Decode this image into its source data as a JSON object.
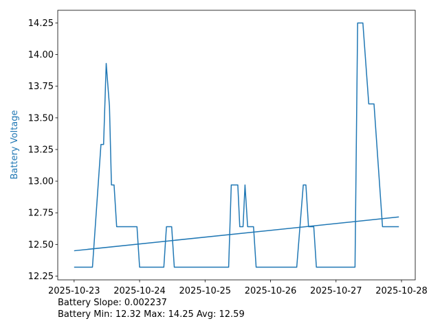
{
  "chart_data": {
    "type": "line",
    "ylabel": "Battery Voltage",
    "ylabel_color": "#1f77b4",
    "annotations": [
      "Battery Slope: 0.002237",
      "Battery Min: 12.32 Max: 14.25 Avg: 12.59"
    ],
    "xlim": [
      -0.25,
      5.21
    ],
    "xticks": [
      {
        "value": 0,
        "label": "2025-10-23"
      },
      {
        "value": 1,
        "label": "2025-10-24"
      },
      {
        "value": 2,
        "label": "2025-10-25"
      },
      {
        "value": 3,
        "label": "2025-10-26"
      },
      {
        "value": 4,
        "label": "2025-10-27"
      },
      {
        "value": 5,
        "label": "2025-10-28"
      }
    ],
    "ylim": [
      12.22,
      14.35
    ],
    "yticks": [
      12.25,
      {
        "value": 12.5,
        "label": "12.50"
      },
      12.75,
      {
        "value": 13.0,
        "label": "13.00"
      },
      13.25,
      {
        "value": 13.5,
        "label": "13.50"
      },
      13.75,
      {
        "value": 14.0,
        "label": "14.00"
      },
      14.25
    ],
    "series": [
      {
        "color": "#1f77b4",
        "x": [
          0,
          0.28,
          0.41,
          0.45,
          0.49,
          0.54,
          0.57,
          0.61,
          0.65,
          0.96,
          1.0,
          1.37,
          1.41,
          1.49,
          1.53,
          2.36,
          2.4,
          2.5,
          2.53,
          2.58,
          2.61,
          2.65,
          2.74,
          2.78,
          3.4,
          3.5,
          3.54,
          3.58,
          3.66,
          3.7,
          4.29,
          4.33,
          4.41,
          4.5,
          4.58,
          4.71,
          4.96
        ],
        "values": [
          12.32,
          12.32,
          13.29,
          13.29,
          13.93,
          13.59,
          12.97,
          12.97,
          12.64,
          12.64,
          12.32,
          12.32,
          12.64,
          12.64,
          12.32,
          12.32,
          12.97,
          12.97,
          12.64,
          12.64,
          12.97,
          12.64,
          12.64,
          12.32,
          12.32,
          12.97,
          12.97,
          12.64,
          12.64,
          12.32,
          12.32,
          14.25,
          14.25,
          13.61,
          13.61,
          12.64,
          12.64
        ]
      },
      {
        "color": "#1f77b4",
        "x": [
          0,
          4.96
        ],
        "values": [
          12.45,
          12.717
        ]
      }
    ]
  }
}
